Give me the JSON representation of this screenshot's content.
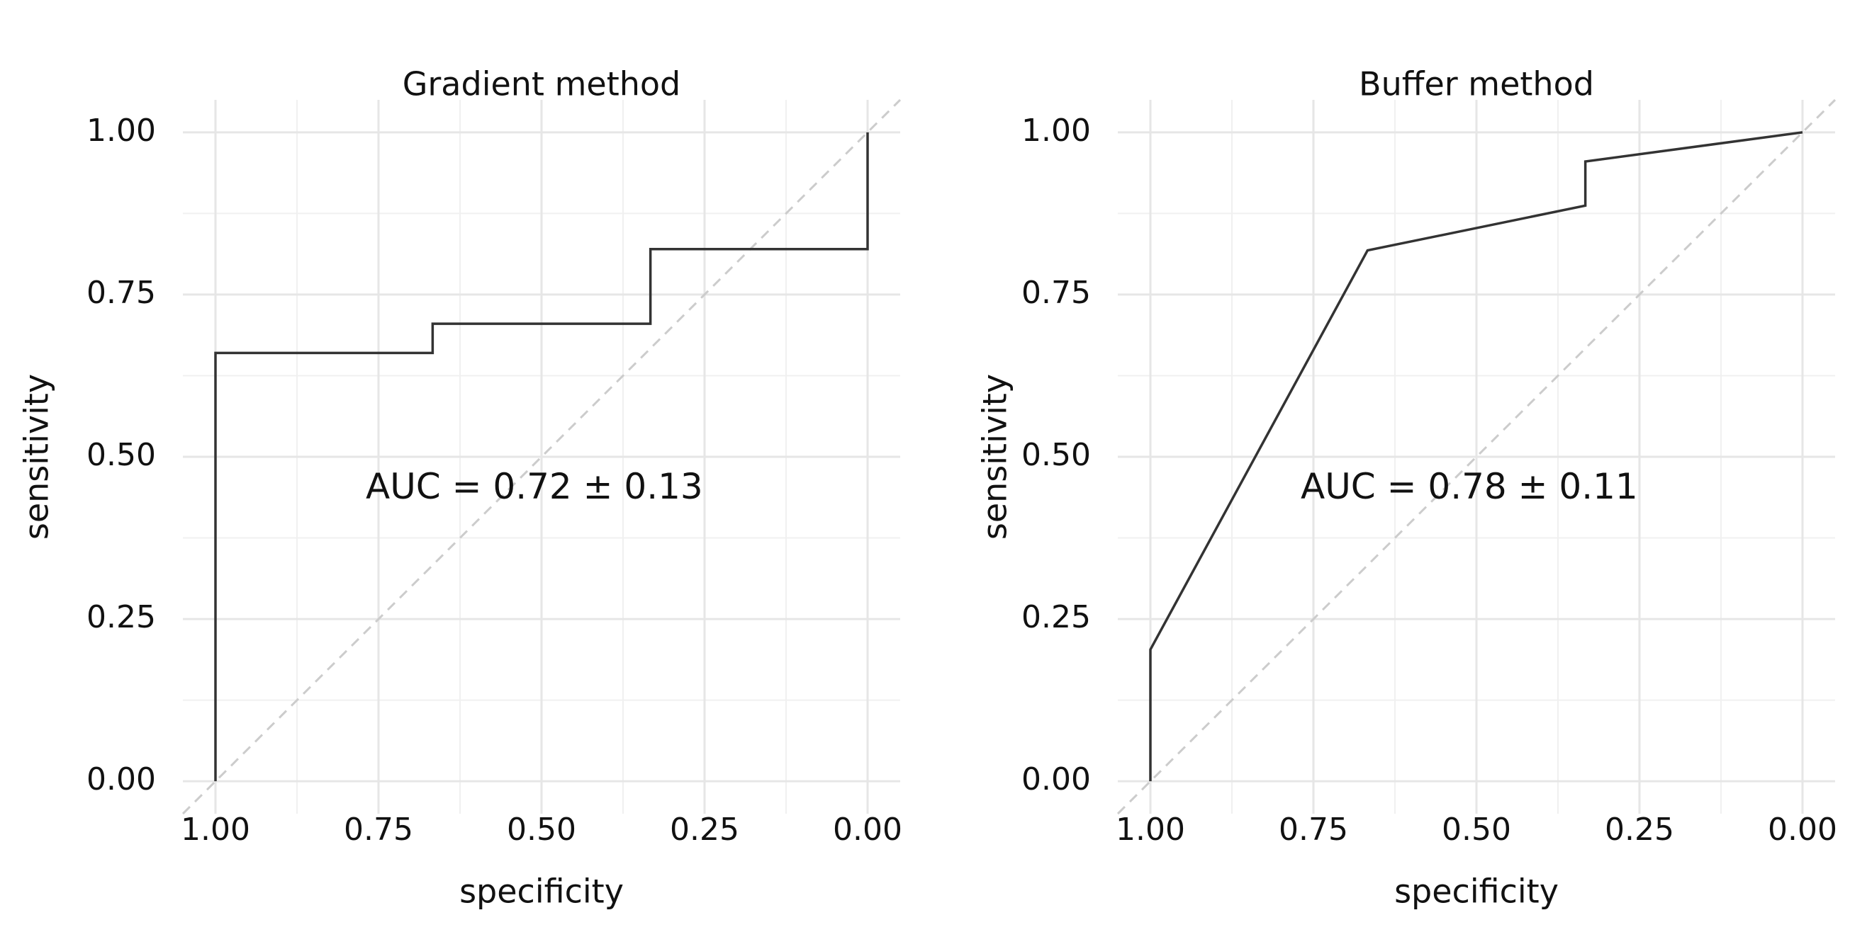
{
  "chart_data": [
    {
      "type": "line",
      "title": "Gradient method",
      "x_label": "specificity",
      "y_label": "sensitivity",
      "annotation": "AUC =  0.72  ± 0.13",
      "x": [
        1.0,
        1.0,
        0.667,
        0.667,
        0.333,
        0.333,
        0.0,
        0.0
      ],
      "values": [
        0.0,
        0.66,
        0.66,
        0.705,
        0.705,
        0.82,
        0.82,
        1.0
      ],
      "color": "#333333",
      "xlim": [
        1.05,
        -0.05
      ],
      "ylim": [
        -0.05,
        1.05
      ],
      "xticks": [
        {
          "value": 1,
          "label": "1.00"
        },
        0.75,
        {
          "value": 0.5,
          "label": "0.50"
        },
        0.25,
        {
          "value": 0,
          "label": "0.00"
        }
      ],
      "yticks": [
        {
          "value": 0,
          "label": "0.00"
        },
        0.25,
        {
          "value": 0.5,
          "label": "0.50"
        },
        0.75,
        {
          "value": 1,
          "label": "1.00"
        }
      ],
      "grid": true
    },
    {
      "type": "line",
      "title": "Buffer method",
      "x_label": "specificity",
      "y_label": "sensitivity",
      "annotation": "AUC = 0.78  ± 0.11",
      "x": [
        1.0,
        1.0,
        0.667,
        0.333,
        0.333,
        0.0
      ],
      "values": [
        0.0,
        0.203,
        0.818,
        0.887,
        0.955,
        1.0
      ],
      "color": "#333333",
      "xlim": [
        1.05,
        -0.05
      ],
      "ylim": [
        -0.05,
        1.05
      ],
      "xticks": [
        {
          "value": 1,
          "label": "1.00"
        },
        0.75,
        {
          "value": 0.5,
          "label": "0.50"
        },
        0.25,
        {
          "value": 0,
          "label": "0.00"
        }
      ],
      "yticks": [
        {
          "value": 0,
          "label": "0.00"
        },
        0.25,
        {
          "value": 0.5,
          "label": "0.50"
        },
        0.75,
        {
          "value": 1,
          "label": "1.00"
        }
      ],
      "grid": true
    }
  ]
}
